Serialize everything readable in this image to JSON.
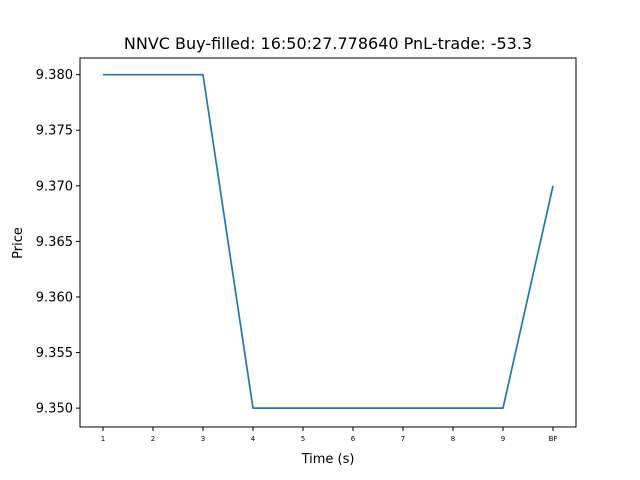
{
  "chart_data": {
    "type": "line",
    "title": "NNVC  Buy-filled:  16:50:27.778640  PnL-trade:  -53.3",
    "xlabel": "Time (s)",
    "ylabel": "Price",
    "categories": [
      "1",
      "2",
      "3",
      "4",
      "5",
      "6",
      "7",
      "8",
      "9",
      "BF"
    ],
    "series": [
      {
        "values": [
          9.38,
          9.38,
          9.38,
          9.35,
          9.35,
          9.35,
          9.35,
          9.35,
          9.35,
          9.37
        ]
      }
    ],
    "ylim": [
      9.3483,
      9.3815
    ],
    "yticks": [
      "9.350",
      "9.355",
      "9.360",
      "9.365",
      "9.370",
      "9.375",
      "9.380"
    ],
    "grid": false,
    "legend": "none",
    "line_color": "#1f77b4"
  }
}
